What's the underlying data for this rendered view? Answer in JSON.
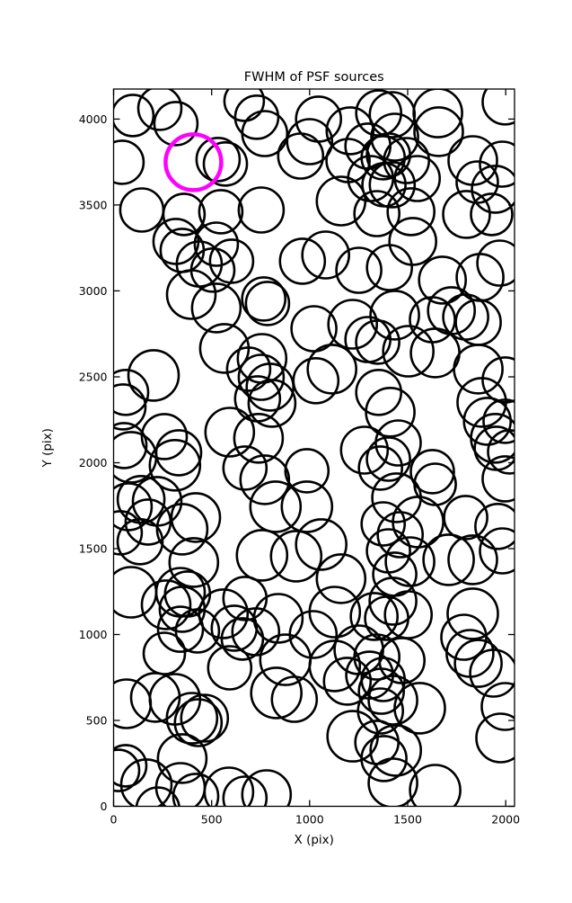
{
  "chart_data": {
    "type": "scatter",
    "title": "FWHM of PSF sources",
    "xlabel": "X (pix)",
    "ylabel": "Y (pix)",
    "xlim": [
      0,
      2045
    ],
    "ylim": [
      0,
      4175
    ],
    "xticks": [
      0,
      500,
      1000,
      1500,
      2000
    ],
    "yticks": [
      0,
      500,
      1000,
      1500,
      2000,
      2500,
      3000,
      3500,
      4000
    ],
    "grid": false,
    "legend": "none",
    "marker": {
      "shape": "circle",
      "fill": "none",
      "stroke": "#000000",
      "stroke_width": 2.6
    },
    "highlight": {
      "x": 407,
      "y": 3749,
      "r": 31,
      "color": "#FF00FF",
      "stroke_width": 4.5,
      "meaning": "highlighted PSF source"
    },
    "points": [
      [
        98,
        4021,
        23
      ],
      [
        236,
        4063,
        24
      ],
      [
        318,
        3974,
        24
      ],
      [
        43,
        3749,
        24
      ],
      [
        533,
        3765,
        24
      ],
      [
        570,
        3739,
        24
      ],
      [
        144,
        3471,
        24
      ],
      [
        359,
        3445,
        23
      ],
      [
        547,
        3461,
        24
      ],
      [
        318,
        3288,
        25
      ],
      [
        350,
        3236,
        24
      ],
      [
        524,
        3272,
        24
      ],
      [
        437,
        3157,
        25
      ],
      [
        602,
        3173,
        24
      ],
      [
        666,
        4105,
        22
      ],
      [
        730,
        4011,
        24
      ],
      [
        771,
        3916,
        25
      ],
      [
        753,
        3471,
        25
      ],
      [
        1000,
        3869,
        25
      ],
      [
        954,
        3785,
        25
      ],
      [
        1045,
        4000,
        25
      ],
      [
        1206,
        3932,
        26
      ],
      [
        1196,
        3759,
        24
      ],
      [
        1297,
        3843,
        25
      ],
      [
        1352,
        4036,
        25
      ],
      [
        1375,
        3775,
        24
      ],
      [
        1311,
        3654,
        25
      ],
      [
        1379,
        3618,
        24
      ],
      [
        1160,
        3523,
        27
      ],
      [
        1343,
        3450,
        25
      ],
      [
        1082,
        3209,
        26
      ],
      [
        963,
        3173,
        25
      ],
      [
        1251,
        3120,
        25
      ],
      [
        1421,
        4026,
        25
      ],
      [
        1654,
        4036,
        27
      ],
      [
        1658,
        3927,
        27
      ],
      [
        1997,
        4100,
        25
      ],
      [
        1434,
        3895,
        26
      ],
      [
        1402,
        3791,
        24
      ],
      [
        1494,
        3759,
        25
      ],
      [
        1549,
        3654,
        25
      ],
      [
        1421,
        3618,
        25
      ],
      [
        1517,
        3461,
        26
      ],
      [
        1832,
        3759,
        27
      ],
      [
        1855,
        3633,
        23
      ],
      [
        1947,
        3592,
        26
      ],
      [
        1983,
        3738,
        25
      ],
      [
        1800,
        3445,
        26
      ],
      [
        1928,
        3445,
        23
      ],
      [
        1526,
        3288,
        26
      ],
      [
        1677,
        3063,
        26
      ],
      [
        1869,
        3079,
        26
      ],
      [
        1970,
        3162,
        25
      ],
      [
        1407,
        3136,
        25
      ],
      [
        396,
        2979,
        27
      ],
      [
        524,
        2901,
        27
      ],
      [
        565,
        2665,
        27
      ],
      [
        204,
        2508,
        28
      ],
      [
        62,
        2409,
        25
      ],
      [
        48,
        2325,
        25
      ],
      [
        259,
        2152,
        25
      ],
      [
        53,
        2100,
        25
      ],
      [
        592,
        2178,
        27
      ],
      [
        332,
        2058,
        25
      ],
      [
        506,
        3121,
        24
      ],
      [
        766,
        2953,
        24
      ],
      [
        785,
        2927,
        24
      ],
      [
        1022,
        2780,
        25
      ],
      [
        1219,
        2806,
        27
      ],
      [
        1297,
        2717,
        25
      ],
      [
        1114,
        2545,
        27
      ],
      [
        1032,
        2477,
        25
      ],
      [
        757,
        2607,
        27
      ],
      [
        689,
        2545,
        24
      ],
      [
        753,
        2497,
        25
      ],
      [
        798,
        2440,
        26
      ],
      [
        734,
        2372,
        25
      ],
      [
        808,
        2346,
        26
      ],
      [
        739,
        2142,
        27
      ],
      [
        1279,
        2073,
        26
      ],
      [
        1452,
        2115,
        25
      ],
      [
        1402,
        2021,
        24
      ],
      [
        1361,
        1969,
        24
      ],
      [
        1434,
        2859,
        27
      ],
      [
        1626,
        2832,
        25
      ],
      [
        1723,
        2885,
        26
      ],
      [
        1796,
        2848,
        25
      ],
      [
        1860,
        2817,
        25
      ],
      [
        1503,
        2649,
        28
      ],
      [
        1640,
        2639,
        27
      ],
      [
        1860,
        2545,
        27
      ],
      [
        1997,
        2482,
        25
      ],
      [
        1878,
        2351,
        27
      ],
      [
        1906,
        2241,
        26
      ],
      [
        1997,
        2241,
        24
      ],
      [
        1947,
        2142,
        27
      ],
      [
        1347,
        2702,
        24
      ],
      [
        1352,
        2409,
        25
      ],
      [
        1411,
        2294,
        27
      ],
      [
        89,
        2032,
        28
      ],
      [
        313,
        1985,
        28
      ],
      [
        75,
        1744,
        26
      ],
      [
        140,
        1786,
        26
      ],
      [
        222,
        1775,
        27
      ],
      [
        176,
        1655,
        25
      ],
      [
        135,
        1540,
        25
      ],
      [
        34,
        1592,
        24
      ],
      [
        350,
        1613,
        28
      ],
      [
        419,
        1681,
        27
      ],
      [
        409,
        1419,
        27
      ],
      [
        89,
        1246,
        28
      ],
      [
        268,
        1173,
        27
      ],
      [
        341,
        1246,
        27
      ],
      [
        377,
        1236,
        25
      ],
      [
        350,
        1147,
        25
      ],
      [
        560,
        1121,
        27
      ],
      [
        615,
        1037,
        25
      ],
      [
        341,
        1031,
        25
      ],
      [
        428,
        1021,
        24
      ],
      [
        771,
        1901,
        27
      ],
      [
        670,
        1969,
        24
      ],
      [
        986,
        1953,
        24
      ],
      [
        826,
        1744,
        28
      ],
      [
        986,
        1744,
        28
      ],
      [
        1059,
        1524,
        28
      ],
      [
        931,
        1456,
        28
      ],
      [
        757,
        1461,
        28
      ],
      [
        1160,
        1325,
        27
      ],
      [
        670,
        1210,
        24
      ],
      [
        840,
        1094,
        27
      ],
      [
        725,
        1016,
        26
      ],
      [
        1128,
        1131,
        28
      ],
      [
        1329,
        1105,
        26
      ],
      [
        1626,
        1948,
        24
      ],
      [
        1640,
        1874,
        23
      ],
      [
        1952,
        2084,
        24
      ],
      [
        2020,
        2063,
        24
      ],
      [
        1997,
        1906,
        25
      ],
      [
        1796,
        1681,
        24
      ],
      [
        1443,
        1796,
        27
      ],
      [
        1375,
        1644,
        24
      ],
      [
        1553,
        1655,
        28
      ],
      [
        1462,
        1581,
        25
      ],
      [
        1402,
        1487,
        24
      ],
      [
        1512,
        1424,
        27
      ],
      [
        1434,
        1351,
        24
      ],
      [
        1709,
        1435,
        28
      ],
      [
        1832,
        1435,
        27
      ],
      [
        1960,
        1629,
        25
      ],
      [
        1983,
        1487,
        25
      ],
      [
        1425,
        1194,
        26
      ],
      [
        1503,
        1115,
        26
      ],
      [
        1393,
        1094,
        24
      ],
      [
        1832,
        1121,
        28
      ],
      [
        1786,
        984,
        25
      ],
      [
        259,
        890,
        23
      ],
      [
        592,
        806,
        24
      ],
      [
        657,
        974,
        23
      ],
      [
        66,
        597,
        27
      ],
      [
        213,
        634,
        27
      ],
      [
        313,
        623,
        28
      ],
      [
        400,
        513,
        28
      ],
      [
        464,
        513,
        26
      ],
      [
        432,
        487,
        26
      ],
      [
        62,
        236,
        23
      ],
      [
        25,
        209,
        23
      ],
      [
        167,
        126,
        28
      ],
      [
        350,
        278,
        27
      ],
      [
        341,
        110,
        27
      ],
      [
        419,
        58,
        25
      ],
      [
        588,
        84,
        27
      ],
      [
        670,
        47,
        24
      ],
      [
        226,
        -16,
        24
      ],
      [
        876,
        853,
        28
      ],
      [
        830,
        660,
        28
      ],
      [
        922,
        623,
        25
      ],
      [
        1018,
        1000,
        26
      ],
      [
        1128,
        817,
        28
      ],
      [
        1251,
        911,
        27
      ],
      [
        1192,
        728,
        26
      ],
      [
        1306,
        764,
        26
      ],
      [
        1343,
        869,
        25
      ],
      [
        1366,
        670,
        25
      ],
      [
        1219,
        408,
        28
      ],
      [
        1343,
        372,
        24
      ],
      [
        780,
        68,
        27
      ],
      [
        1361,
        555,
        25
      ],
      [
        1471,
        848,
        25
      ],
      [
        1375,
        738,
        24
      ],
      [
        1818,
        890,
        26
      ],
      [
        1860,
        832,
        26
      ],
      [
        1938,
        775,
        26
      ],
      [
        1997,
        581,
        26
      ],
      [
        1974,
        398,
        27
      ],
      [
        1425,
        618,
        27
      ],
      [
        1562,
        571,
        28
      ],
      [
        1439,
        325,
        28
      ],
      [
        1379,
        278,
        25
      ],
      [
        1425,
        136,
        27
      ],
      [
        1640,
        94,
        28
      ]
    ]
  }
}
